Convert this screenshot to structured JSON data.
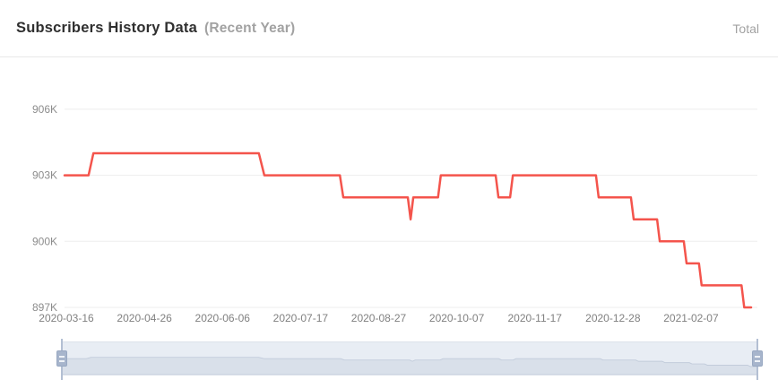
{
  "header": {
    "title": "Subscribers History Data",
    "subtitle": "(Recent Year)",
    "series_label": "Total"
  },
  "chart_data": {
    "type": "line",
    "title": "Subscribers History Data (Recent Year)",
    "series_name": "Total",
    "unit": "subscribers (thousands)",
    "step": true,
    "line_color": "#f4544c",
    "grid": true,
    "grid_color": "#ededed",
    "legend_position": "top-right",
    "y_ticks": [
      "906K",
      "903K",
      "900K",
      "897K"
    ],
    "y_range_k": [
      897,
      907.5
    ],
    "x_ticks": [
      "2020-03-16",
      "2020-04-26",
      "2020-06-06",
      "2020-07-17",
      "2020-08-27",
      "2020-10-07",
      "2020-11-17",
      "2020-12-28",
      "2021-02-07"
    ],
    "x_range": [
      "2020-03-16",
      "2021-03-11"
    ],
    "points_k": [
      [
        0.0,
        903
      ],
      [
        0.035,
        903
      ],
      [
        0.042,
        904
      ],
      [
        0.283,
        904
      ],
      [
        0.291,
        903
      ],
      [
        0.401,
        903
      ],
      [
        0.406,
        902
      ],
      [
        0.5,
        902
      ],
      [
        0.504,
        901
      ],
      [
        0.508,
        902
      ],
      [
        0.544,
        902
      ],
      [
        0.548,
        903
      ],
      [
        0.628,
        903
      ],
      [
        0.632,
        902
      ],
      [
        0.649,
        902
      ],
      [
        0.653,
        903
      ],
      [
        0.774,
        903
      ],
      [
        0.778,
        902
      ],
      [
        0.825,
        902
      ],
      [
        0.829,
        901
      ],
      [
        0.863,
        901
      ],
      [
        0.867,
        900
      ],
      [
        0.902,
        900
      ],
      [
        0.906,
        899
      ],
      [
        0.924,
        899
      ],
      [
        0.928,
        898
      ],
      [
        0.986,
        898
      ],
      [
        0.99,
        897
      ],
      [
        1.0,
        897
      ]
    ],
    "annotations": "Step line starts at 903K on 2020-03-16, rises to 904K late Mar 2020, drops to 903K late Jun, 902K early Aug, one-day dip to 901K mid Sep, back up to 903K late Sep, brief 902K notch late Oct, 903K until mid Dec, then stepwise decline: 902K late Dec, 901K early Jan 2021, 900K mid Jan, 899K early Feb, 898K mid Feb, 897K early Mar 2021"
  },
  "datazoom": {
    "window_percent": [
      0,
      100
    ],
    "background_color": "#e8edf4",
    "area_color": "#d9e0ea",
    "area_stroke_color": "#c2ccdb",
    "handle_color": "#a7b5cc"
  }
}
